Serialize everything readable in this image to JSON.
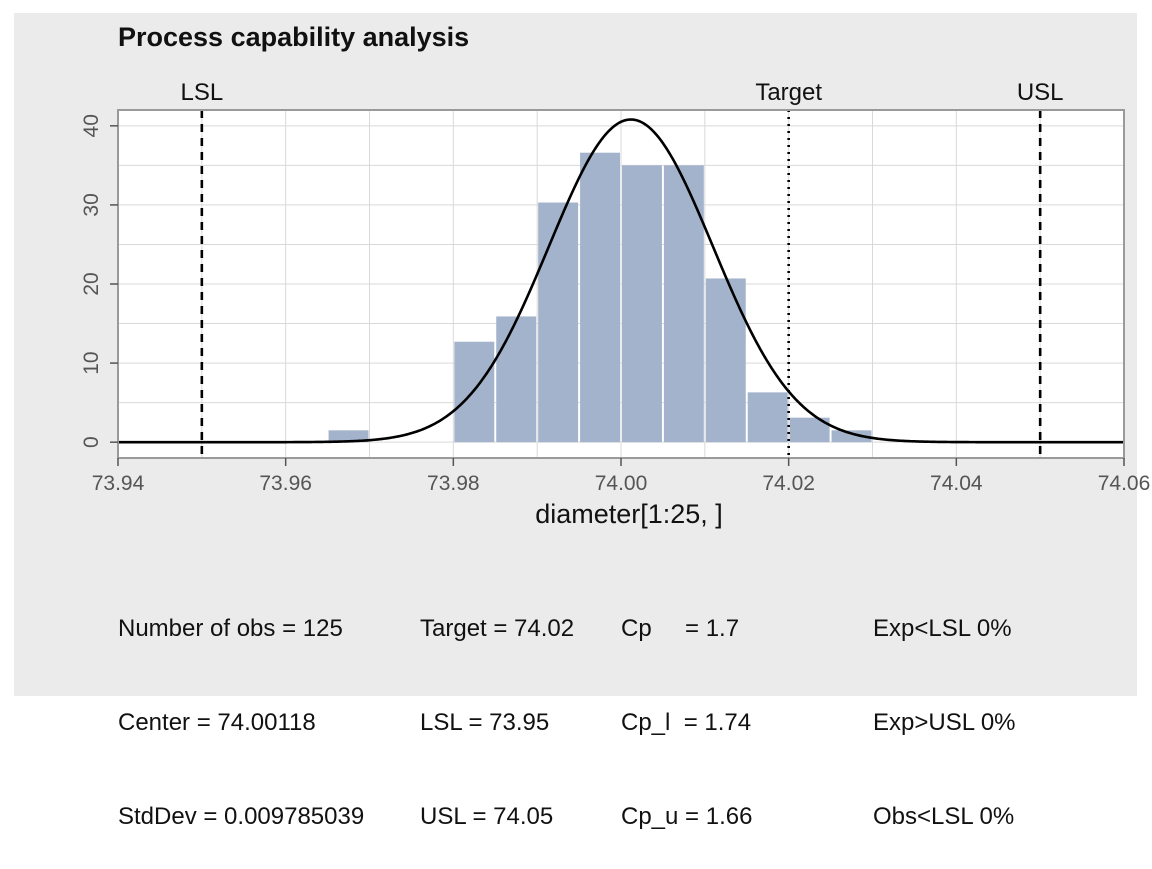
{
  "chart_data": {
    "type": "bar",
    "title": "Process capability analysis",
    "xlabel": "diameter[1:25, ]",
    "ylabel": "",
    "xlim": [
      73.94,
      74.06
    ],
    "ylim": [
      -2,
      42
    ],
    "x_ticks": [
      "73.94",
      "73.96",
      "73.98",
      "74.00",
      "74.02",
      "74.04",
      "74.06"
    ],
    "y_ticks": [
      "0",
      "10",
      "20",
      "30",
      "40"
    ],
    "bins": [
      {
        "start": 73.965,
        "end": 73.97,
        "value": 1.5
      },
      {
        "start": 73.98,
        "end": 73.985,
        "value": 12.7
      },
      {
        "start": 73.985,
        "end": 73.99,
        "value": 15.9
      },
      {
        "start": 73.99,
        "end": 73.995,
        "value": 30.3
      },
      {
        "start": 73.995,
        "end": 74.0,
        "value": 36.6
      },
      {
        "start": 74.0,
        "end": 74.005,
        "value": 35.0
      },
      {
        "start": 74.005,
        "end": 74.01,
        "value": 35.0
      },
      {
        "start": 74.01,
        "end": 74.015,
        "value": 20.7
      },
      {
        "start": 74.015,
        "end": 74.02,
        "value": 6.3
      },
      {
        "start": 74.02,
        "end": 74.025,
        "value": 3.1
      },
      {
        "start": 74.025,
        "end": 74.03,
        "value": 1.5
      }
    ],
    "density_curve": {
      "mean": 74.00118,
      "sd": 0.009785039,
      "peak": 40.8
    },
    "reference_lines": [
      {
        "label": "LSL",
        "x": 73.95,
        "style": "dashed"
      },
      {
        "label": "Target",
        "x": 74.02,
        "style": "dotted"
      },
      {
        "label": "USL",
        "x": 74.05,
        "style": "dashed"
      }
    ],
    "grid": true,
    "colors": {
      "bar": "#a3b3cc",
      "curve": "#000000",
      "panel": "#ffffff",
      "background": "#ebebeb",
      "grid": "#d9d9d9"
    }
  },
  "stats": {
    "col1": [
      "Number of obs = 125",
      "Center = 74.00118",
      "StdDev = 0.009785039"
    ],
    "col2": [
      "Target = 74.02",
      "LSL = 73.95",
      "USL = 74.05"
    ],
    "col3": [
      "Cp     = 1.7",
      "Cp_l  = 1.74",
      "Cp_u = 1.66"
    ],
    "col4": [
      "Exp<LSL 0%",
      "Exp>USL 0%",
      "Obs<LSL 0%"
    ]
  }
}
